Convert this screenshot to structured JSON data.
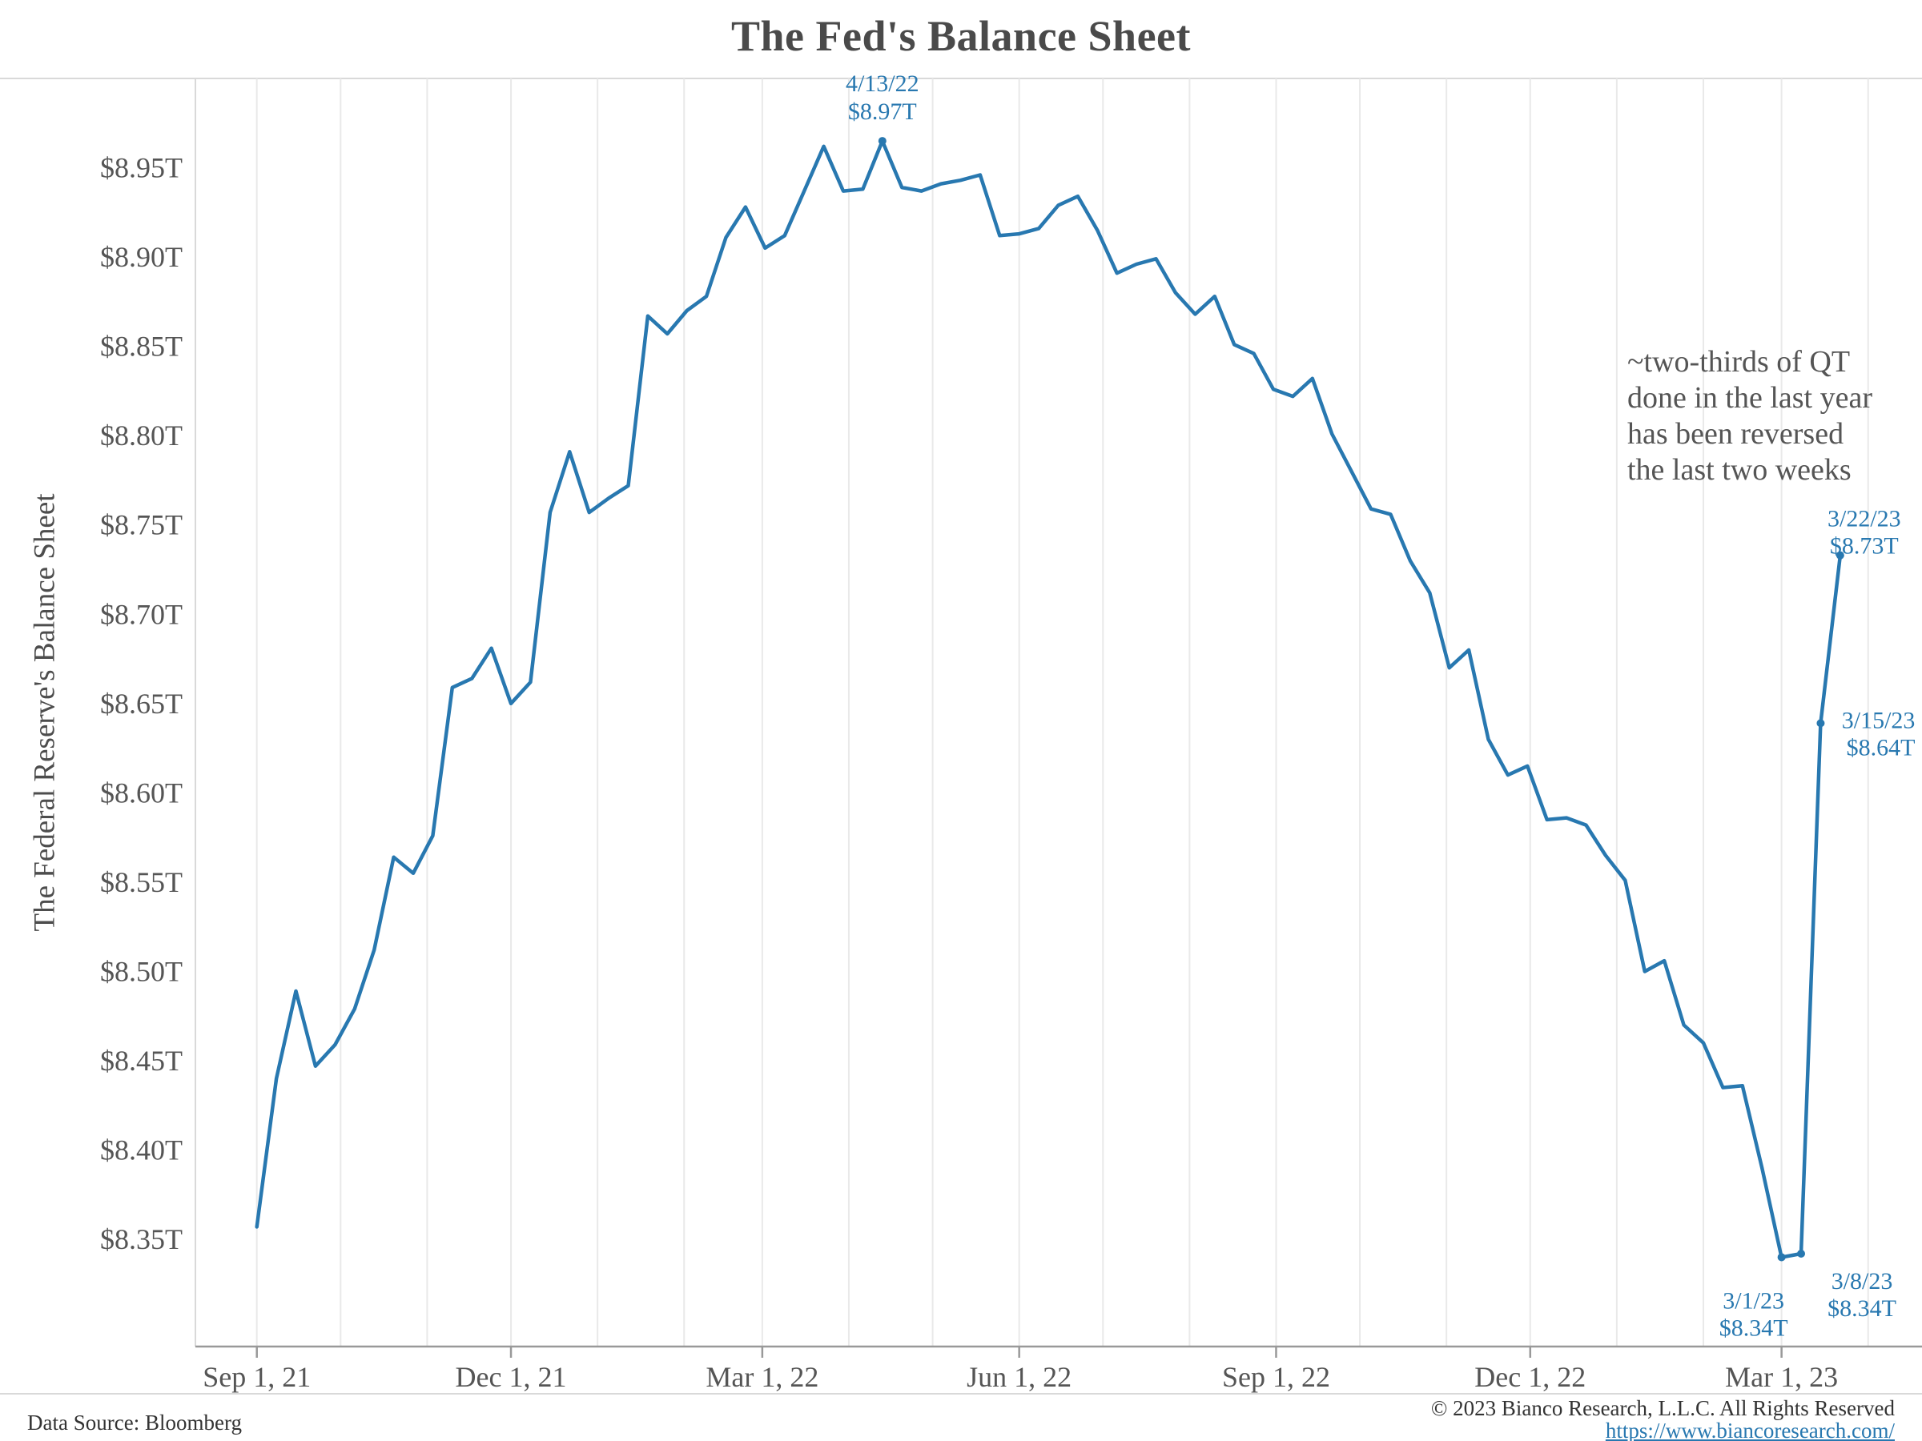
{
  "chart_data": {
    "type": "line",
    "title": "The Fed's Balance Sheet",
    "xlabel": "",
    "ylabel": "The Federal Reserve's Balance Sheet",
    "grid": "vertical-monthly-only",
    "legend_position": "none",
    "ylim": [
      8.29,
      9.0
    ],
    "x_domain": [
      "2021-08-10",
      "2023-04-18"
    ],
    "colors": {
      "line": "#2878b0",
      "annotation_text": "#2878b0",
      "title_text": "#4a4a4a",
      "axis_text": "#555555",
      "note_text": "#555555",
      "gridline": "#e9e9e9",
      "frame_line": "#d9d9d9",
      "axis_line": "#999999",
      "background": "#ffffff"
    },
    "y_ticks": [
      {
        "label": "$8.35T",
        "value": 8.35
      },
      {
        "label": "$8.40T",
        "value": 8.4
      },
      {
        "label": "$8.45T",
        "value": 8.45
      },
      {
        "label": "$8.50T",
        "value": 8.5
      },
      {
        "label": "$8.55T",
        "value": 8.55
      },
      {
        "label": "$8.60T",
        "value": 8.6
      },
      {
        "label": "$8.65T",
        "value": 8.65
      },
      {
        "label": "$8.70T",
        "value": 8.7
      },
      {
        "label": "$8.75T",
        "value": 8.75
      },
      {
        "label": "$8.80T",
        "value": 8.8
      },
      {
        "label": "$8.85T",
        "value": 8.85
      },
      {
        "label": "$8.90T",
        "value": 8.9
      },
      {
        "label": "$8.95T",
        "value": 8.95
      }
    ],
    "x_ticks": [
      {
        "label": "Sep 1, 21",
        "date": "2021-09-01"
      },
      {
        "label": "Dec 1, 21",
        "date": "2021-12-01"
      },
      {
        "label": "Mar 1, 22",
        "date": "2022-03-01"
      },
      {
        "label": "Jun 1, 22",
        "date": "2022-06-01"
      },
      {
        "label": "Sep 1, 22",
        "date": "2022-09-01"
      },
      {
        "label": "Dec 1, 22",
        "date": "2022-12-01"
      },
      {
        "label": "Mar 1, 23",
        "date": "2023-03-01"
      }
    ],
    "series": [
      {
        "name": "The Federal Reserve's Balance Sheet ($T)",
        "points": [
          [
            "2021-09-01",
            8.357
          ],
          [
            "2021-09-08",
            8.44
          ],
          [
            "2021-09-15",
            8.489
          ],
          [
            "2021-09-22",
            8.447
          ],
          [
            "2021-09-29",
            8.459
          ],
          [
            "2021-10-06",
            8.479
          ],
          [
            "2021-10-13",
            8.512
          ],
          [
            "2021-10-20",
            8.564
          ],
          [
            "2021-10-27",
            8.555
          ],
          [
            "2021-11-03",
            8.576
          ],
          [
            "2021-11-10",
            8.659
          ],
          [
            "2021-11-17",
            8.664
          ],
          [
            "2021-11-24",
            8.681
          ],
          [
            "2021-12-01",
            8.65
          ],
          [
            "2021-12-08",
            8.662
          ],
          [
            "2021-12-15",
            8.757
          ],
          [
            "2021-12-22",
            8.791
          ],
          [
            "2021-12-29",
            8.757
          ],
          [
            "2022-01-05",
            8.765
          ],
          [
            "2022-01-12",
            8.772
          ],
          [
            "2022-01-19",
            8.867
          ],
          [
            "2022-01-26",
            8.857
          ],
          [
            "2022-02-02",
            8.87
          ],
          [
            "2022-02-09",
            8.878
          ],
          [
            "2022-02-16",
            8.911
          ],
          [
            "2022-02-23",
            8.928
          ],
          [
            "2022-03-02",
            8.905
          ],
          [
            "2022-03-09",
            8.912
          ],
          [
            "2022-03-16",
            8.937
          ],
          [
            "2022-03-23",
            8.962
          ],
          [
            "2022-03-30",
            8.937
          ],
          [
            "2022-04-06",
            8.938
          ],
          [
            "2022-04-13",
            8.965
          ],
          [
            "2022-04-20",
            8.939
          ],
          [
            "2022-04-27",
            8.937
          ],
          [
            "2022-05-04",
            8.941
          ],
          [
            "2022-05-11",
            8.943
          ],
          [
            "2022-05-18",
            8.946
          ],
          [
            "2022-05-25",
            8.912
          ],
          [
            "2022-06-01",
            8.913
          ],
          [
            "2022-06-08",
            8.916
          ],
          [
            "2022-06-15",
            8.929
          ],
          [
            "2022-06-22",
            8.934
          ],
          [
            "2022-06-29",
            8.915
          ],
          [
            "2022-07-06",
            8.891
          ],
          [
            "2022-07-13",
            8.896
          ],
          [
            "2022-07-20",
            8.899
          ],
          [
            "2022-07-27",
            8.88
          ],
          [
            "2022-08-03",
            8.868
          ],
          [
            "2022-08-10",
            8.878
          ],
          [
            "2022-08-17",
            8.851
          ],
          [
            "2022-08-24",
            8.846
          ],
          [
            "2022-08-31",
            8.826
          ],
          [
            "2022-09-07",
            8.822
          ],
          [
            "2022-09-14",
            8.832
          ],
          [
            "2022-09-21",
            8.801
          ],
          [
            "2022-09-28",
            8.78
          ],
          [
            "2022-10-05",
            8.759
          ],
          [
            "2022-10-12",
            8.756
          ],
          [
            "2022-10-19",
            8.73
          ],
          [
            "2022-10-26",
            8.712
          ],
          [
            "2022-11-02",
            8.67
          ],
          [
            "2022-11-09",
            8.68
          ],
          [
            "2022-11-16",
            8.63
          ],
          [
            "2022-11-23",
            8.61
          ],
          [
            "2022-11-30",
            8.615
          ],
          [
            "2022-12-07",
            8.585
          ],
          [
            "2022-12-14",
            8.586
          ],
          [
            "2022-12-21",
            8.582
          ],
          [
            "2022-12-28",
            8.565
          ],
          [
            "2023-01-04",
            8.551
          ],
          [
            "2023-01-11",
            8.5
          ],
          [
            "2023-01-18",
            8.506
          ],
          [
            "2023-01-25",
            8.47
          ],
          [
            "2023-02-01",
            8.46
          ],
          [
            "2023-02-08",
            8.435
          ],
          [
            "2023-02-15",
            8.436
          ],
          [
            "2023-02-22",
            8.39
          ],
          [
            "2023-03-01",
            8.34
          ],
          [
            "2023-03-08",
            8.342
          ],
          [
            "2023-03-15",
            8.639
          ],
          [
            "2023-03-22",
            8.733
          ]
        ]
      }
    ],
    "annotations": [
      {
        "id": "peak-4-13-22",
        "date": "2022-04-13",
        "value": 8.965,
        "label_lines": [
          "4/13/22",
          "$8.97T"
        ],
        "anchor": "middle",
        "dx": 0,
        "dys": [
          -62,
          -27
        ],
        "marker": true
      },
      {
        "id": "low-3-1-23",
        "date": "2023-03-01",
        "value": 8.34,
        "label_lines": [
          "3/1/23",
          "$8.34T"
        ],
        "anchor": "middle",
        "dx": -35,
        "dys": [
          64,
          98
        ],
        "marker": true
      },
      {
        "id": "low-3-8-23",
        "date": "2023-03-08",
        "value": 8.342,
        "label_lines": [
          "3/8/23",
          "$8.34T"
        ],
        "anchor": "middle",
        "dx": 76,
        "dys": [
          44,
          78
        ],
        "marker": true
      },
      {
        "id": "rebound-3-15-23",
        "date": "2023-03-15",
        "value": 8.639,
        "label_lines": [
          "3/15/23",
          "$8.64T"
        ],
        "anchor": "end",
        "dx": 118,
        "dys": [
          6,
          40
        ],
        "marker": true
      },
      {
        "id": "end-3-22-23",
        "date": "2023-03-22",
        "value": 8.733,
        "label_lines": [
          "3/22/23",
          "$8.73T"
        ],
        "anchor": "middle",
        "dx": 30,
        "dys": [
          -36,
          -2
        ],
        "marker": true
      }
    ],
    "note_lines": [
      "~two-thirds of QT",
      "done in the last year",
      "has been reversed",
      "the last two weeks"
    ]
  },
  "footer": {
    "source": "Data Source: Bloomberg",
    "copyright": "© 2023 Bianco Research, L.L.C. All Rights Reserved",
    "link": "https://www.biancoresearch.com/"
  }
}
